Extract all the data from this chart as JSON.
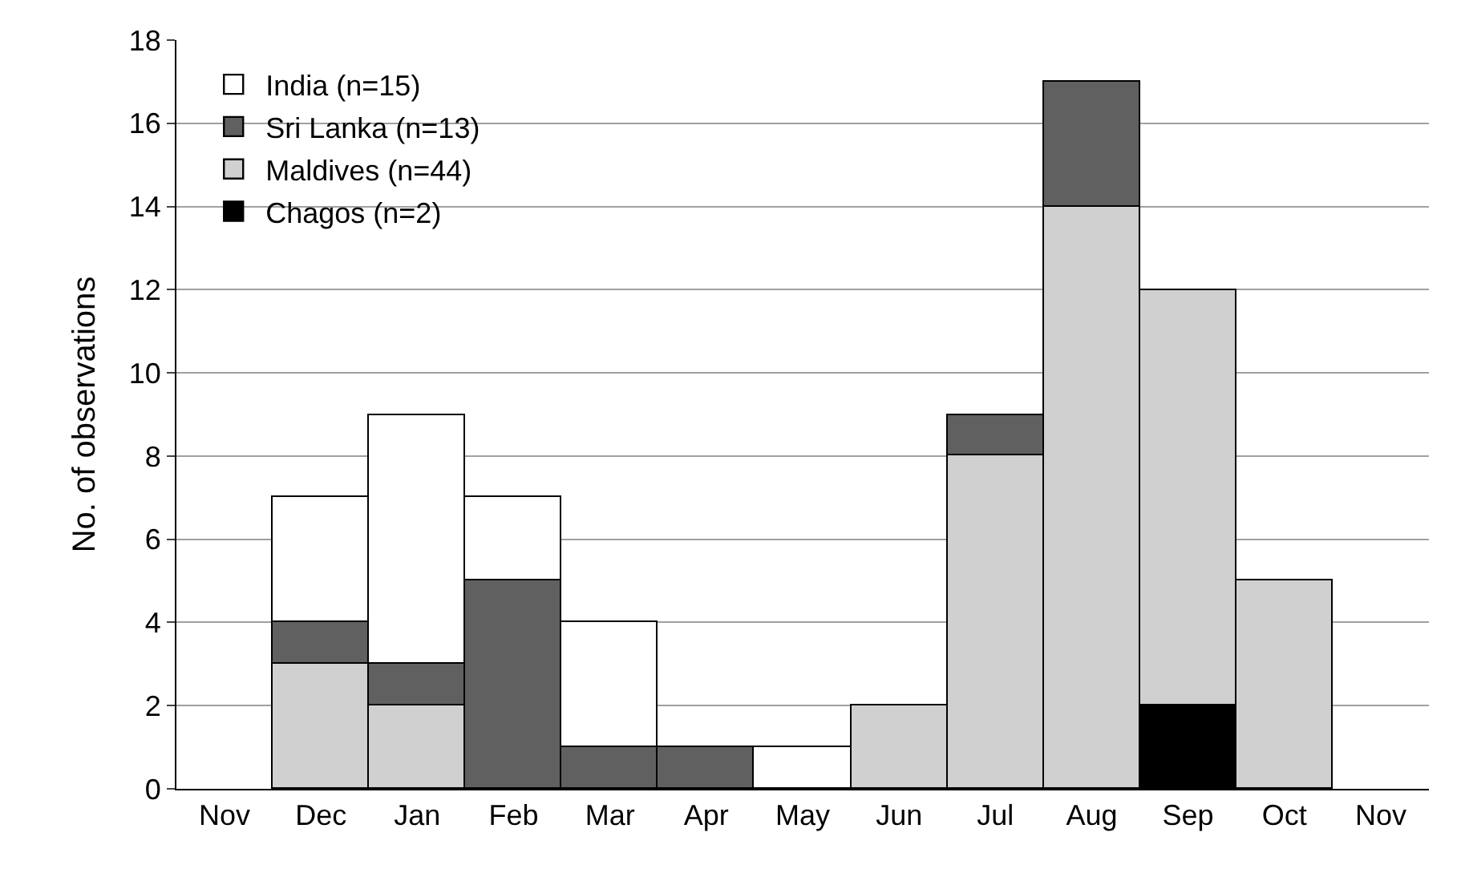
{
  "chart_data": {
    "type": "bar",
    "stacked": true,
    "ylabel": "No. of observations",
    "categories": [
      "Nov",
      "Dec",
      "Jan",
      "Feb",
      "Mar",
      "Apr",
      "May",
      "Jun",
      "Jul",
      "Aug",
      "Sep",
      "Oct",
      "Nov"
    ],
    "series": [
      {
        "name": "Chagos (n=2)",
        "color": "#000000",
        "values": [
          0,
          0,
          0,
          0,
          0,
          0,
          0,
          0,
          0,
          0,
          2,
          0,
          0
        ]
      },
      {
        "name": "Maldives (n=44)",
        "color": "#d0d0d0",
        "values": [
          0,
          3,
          2,
          0,
          0,
          0,
          0,
          2,
          8,
          14,
          10,
          5,
          0
        ]
      },
      {
        "name": "Sri Lanka (n=13)",
        "color": "#606060",
        "values": [
          0,
          1,
          1,
          5,
          1,
          1,
          0,
          0,
          1,
          3,
          0,
          0,
          0
        ]
      },
      {
        "name": "India (n=15)",
        "color": "#ffffff",
        "values": [
          0,
          3,
          6,
          2,
          3,
          0,
          1,
          0,
          0,
          0,
          0,
          0,
          0
        ]
      }
    ],
    "ylim": [
      0,
      18
    ],
    "yticks": [
      0,
      2,
      4,
      6,
      8,
      10,
      12,
      14,
      16,
      18
    ],
    "grid": "y",
    "legend": "top left"
  }
}
